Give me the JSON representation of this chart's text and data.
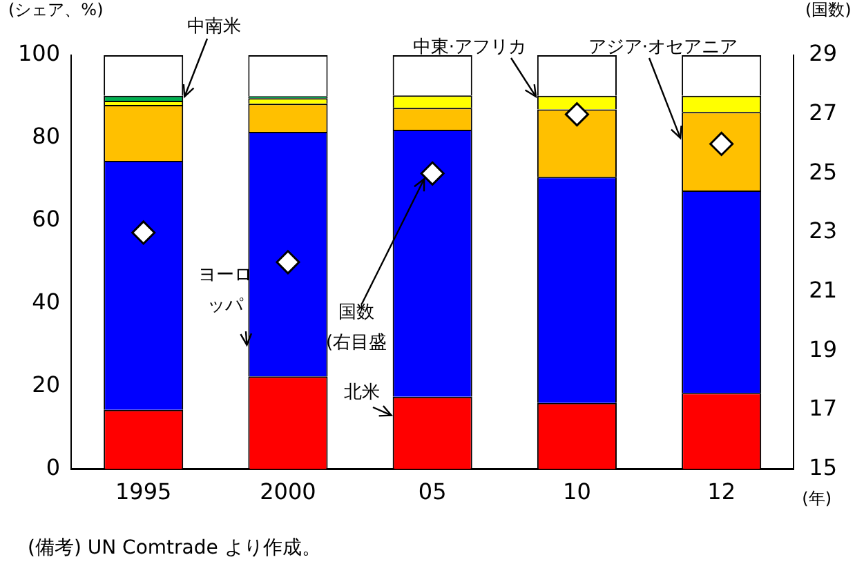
{
  "chart_data": {
    "type": "bar",
    "stacked": true,
    "categories": [
      "1995",
      "2000",
      "05",
      "10",
      "12"
    ],
    "ylabel": "(シェア、%)",
    "y2label": "(国数)",
    "xlabel": "(年)",
    "ylim": [
      0,
      100
    ],
    "yticks": [
      0,
      20,
      40,
      60,
      80,
      100
    ],
    "y2lim": [
      15,
      29
    ],
    "y2ticks": [
      15,
      17,
      19,
      21,
      23,
      25,
      27,
      29
    ],
    "grid": false,
    "legend": false,
    "series": [
      {
        "name": "北米",
        "color": "#ff0000",
        "values": [
          14.3,
          22.4,
          17.5,
          16.0,
          18.4
        ]
      },
      {
        "name": "ヨーロッパ",
        "color": "#0000ff",
        "values": [
          60.2,
          59.1,
          64.5,
          54.6,
          48.9
        ]
      },
      {
        "name": "アジア·オセアニア",
        "color": "#ffc000",
        "values": [
          13.5,
          6.8,
          5.3,
          16.3,
          19.0
        ]
      },
      {
        "name": "中東·アフリカ",
        "color": "#ffff00",
        "values": [
          1.0,
          1.3,
          3.0,
          3.3,
          3.9
        ]
      },
      {
        "name": "中南米",
        "color": "#00b050",
        "values": [
          1.2,
          0.5,
          0.0,
          0.0,
          0.0
        ]
      },
      {
        "color": "#ffffff",
        "values": [
          9.8,
          9.9,
          9.7,
          9.8,
          9.8
        ]
      },
      {
        "name": "国数\n(右目盛",
        "type": "scatter",
        "axis": "y2",
        "marker": "diamond",
        "color": "#ffffff",
        "values": [
          23,
          22,
          25,
          27,
          26
        ]
      }
    ],
    "annotations": [
      "(備考) UN Comtrade より作成。"
    ]
  }
}
